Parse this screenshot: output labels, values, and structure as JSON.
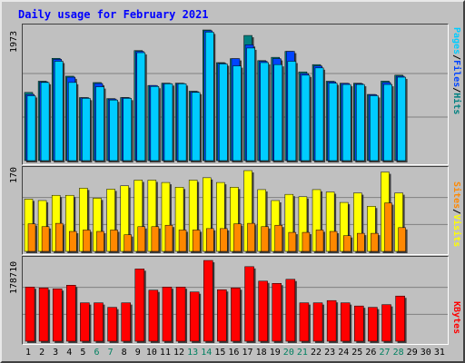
{
  "title": "Daily usage for February 2021",
  "colors": {
    "pages": "#00ccff",
    "files": "#0044ff",
    "hits": "#008080",
    "visits": "#ffff00",
    "sites": "#ff8800",
    "kbytes": "#ff0000",
    "weekday_label": "#000000",
    "weekend_label": "#008060"
  },
  "labels": {
    "pages": "Pages",
    "files": "Files",
    "hits": "Hits",
    "visits": "Visits",
    "sites": "Sites",
    "kbytes": "KBytes"
  },
  "chart_data": [
    {
      "type": "bar",
      "name": "Pages / Files / Hits",
      "ymax_label": "1973",
      "ylim": [
        0,
        1973
      ],
      "grid": true,
      "categories": [
        "1",
        "2",
        "3",
        "4",
        "5",
        "6",
        "7",
        "8",
        "9",
        "10",
        "11",
        "12",
        "13",
        "14",
        "15",
        "16",
        "17",
        "18",
        "19",
        "20",
        "21",
        "22",
        "23",
        "24",
        "25",
        "26",
        "27",
        "28",
        "29",
        "30",
        "31"
      ],
      "series": [
        {
          "name": "Hits",
          "values": [
            1030,
            1199,
            1545,
            1275,
            952,
            1179,
            937,
            953,
            1662,
            1135,
            1170,
            1170,
            1048,
            1973,
            1480,
            1540,
            1890,
            1510,
            1560,
            1650,
            1340,
            1450,
            1199,
            1169,
            1169,
            1000,
            1200,
            1290,
            null,
            null,
            null
          ]
        },
        {
          "name": "Files",
          "values": [
            1000,
            1190,
            1530,
            1260,
            950,
            1165,
            930,
            950,
            1650,
            1135,
            1165,
            1165,
            1040,
            1960,
            1470,
            1540,
            1750,
            1500,
            1540,
            1650,
            1315,
            1430,
            1190,
            1165,
            1160,
            995,
            1180,
            1275,
            null,
            null,
            null
          ]
        },
        {
          "name": "Pages",
          "values": [
            980,
            1180,
            1500,
            1180,
            940,
            1115,
            915,
            940,
            1630,
            1120,
            1160,
            1160,
            1030,
            1940,
            1460,
            1430,
            1700,
            1480,
            1450,
            1500,
            1290,
            1400,
            1170,
            1150,
            1150,
            980,
            1150,
            1260,
            null,
            null,
            null
          ]
        }
      ]
    },
    {
      "type": "bar",
      "name": "Visits / Sites",
      "ymax_label": "170",
      "ylim": [
        0,
        170
      ],
      "grid": true,
      "categories": [
        "1",
        "2",
        "3",
        "4",
        "5",
        "6",
        "7",
        "8",
        "9",
        "10",
        "11",
        "12",
        "13",
        "14",
        "15",
        "16",
        "17",
        "18",
        "19",
        "20",
        "21",
        "22",
        "23",
        "24",
        "25",
        "26",
        "27",
        "28",
        "29",
        "30",
        "31"
      ],
      "series": [
        {
          "name": "Visits",
          "values": [
            110,
            107,
            118,
            118,
            133,
            112,
            131,
            138,
            150,
            150,
            145,
            135,
            150,
            155,
            145,
            135,
            170,
            130,
            107,
            120,
            115,
            130,
            125,
            103,
            123,
            95,
            167,
            123,
            null,
            null,
            null
          ]
        },
        {
          "name": "Sites",
          "values": [
            58,
            52,
            59,
            42,
            45,
            42,
            45,
            35,
            52,
            52,
            55,
            45,
            45,
            48,
            48,
            58,
            59,
            52,
            55,
            40,
            40,
            45,
            42,
            33,
            38,
            38,
            102,
            50,
            null,
            null,
            null
          ]
        }
      ]
    },
    {
      "type": "bar",
      "name": "KBytes",
      "ymax_label": "178710",
      "ylim": [
        0,
        178710
      ],
      "grid": true,
      "categories": [
        "1",
        "2",
        "3",
        "4",
        "5",
        "6",
        "7",
        "8",
        "9",
        "10",
        "11",
        "12",
        "13",
        "14",
        "15",
        "16",
        "17",
        "18",
        "19",
        "20",
        "21",
        "22",
        "23",
        "24",
        "25",
        "26",
        "27",
        "28",
        "29",
        "30",
        "31"
      ],
      "series": [
        {
          "name": "KBytes",
          "values": [
            120000,
            118000,
            116000,
            124000,
            85000,
            85000,
            75000,
            85000,
            160000,
            113000,
            120000,
            120000,
            109000,
            178710,
            114000,
            118000,
            165000,
            133000,
            128000,
            137000,
            85000,
            85000,
            90000,
            85000,
            78000,
            75000,
            81000,
            100000,
            null,
            null,
            null
          ]
        }
      ]
    }
  ],
  "weekend_days": [
    6,
    7,
    13,
    14,
    20,
    21,
    27,
    28
  ]
}
